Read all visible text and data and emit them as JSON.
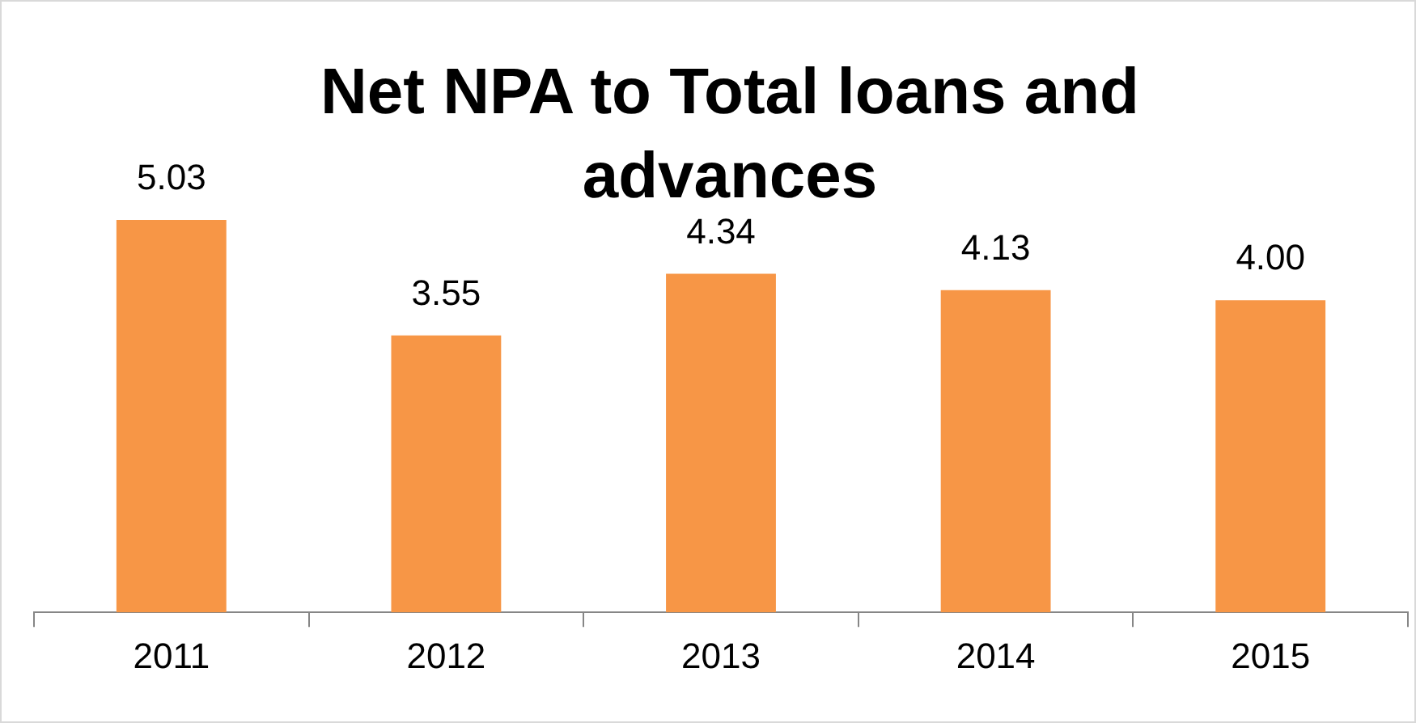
{
  "chart_data": {
    "type": "bar",
    "title": "Net NPA to Total loans and advances",
    "categories": [
      "2011",
      "2012",
      "2013",
      "2014",
      "2015"
    ],
    "values": [
      5.03,
      3.55,
      4.34,
      4.13,
      4.0
    ],
    "value_labels": [
      "5.03",
      "3.55",
      "4.34",
      "4.13",
      "4.00"
    ],
    "color": "#f79646",
    "grid": false,
    "legend": false
  }
}
